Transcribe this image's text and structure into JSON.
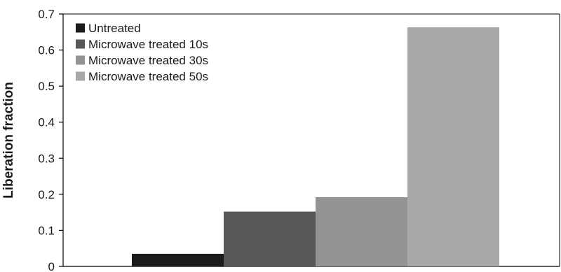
{
  "chart_data": {
    "type": "bar",
    "title": "",
    "xlabel": "",
    "ylabel": "Liberation fraction",
    "ylim": [
      0,
      0.7
    ],
    "yticks": [
      "0",
      "0.1",
      "0.2",
      "0.3",
      "0.4",
      "0.5",
      "0.6",
      "0.7"
    ],
    "grid": false,
    "legend_position": "top-left",
    "series": [
      {
        "name": "Untreated",
        "values": [
          0.035
        ],
        "color": "#1c1c1c"
      },
      {
        "name": "Microwave treated 10s",
        "values": [
          0.152
        ],
        "color": "#58585a"
      },
      {
        "name": "Microwave treated 30s",
        "values": [
          0.192
        ],
        "color": "#939496"
      },
      {
        "name": "Microwave treated 50s",
        "values": [
          0.663
        ],
        "color": "#a7a8aa"
      }
    ]
  }
}
